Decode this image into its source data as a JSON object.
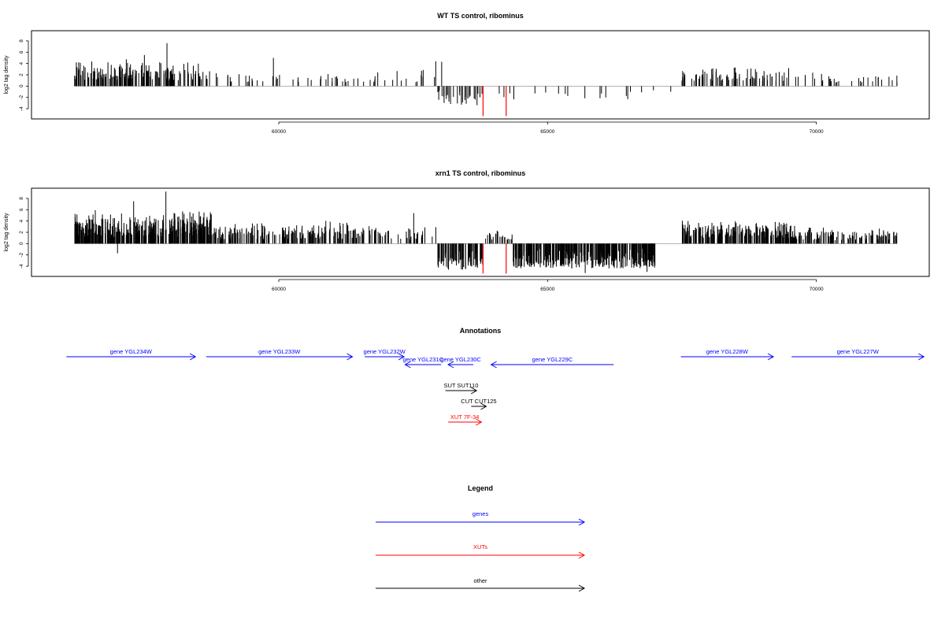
{
  "chart_data": [
    {
      "type": "bar",
      "title": "WT TS control, ribominus",
      "ylabel": "log2 tag density",
      "xlabel": "",
      "xlim": [
        55400,
        72100
      ],
      "ylim": [
        -5.8,
        9.8
      ],
      "xticks": [
        60000,
        65000,
        70000
      ],
      "yticks": [
        -4,
        -2,
        0,
        2,
        4,
        6,
        8
      ],
      "positive_color": "#000000",
      "negative_color": "#000000",
      "marker_color": "#ff0000",
      "markers": [
        {
          "x": 63800,
          "y": -5.3
        },
        {
          "x": 64230,
          "y": -5.3
        }
      ],
      "segments": [
        {
          "x0": 56200,
          "x1": 58600,
          "density": 0.7,
          "min": 1.0,
          "max": 4.8
        },
        {
          "x0": 58600,
          "x1": 60500,
          "density": 0.16,
          "min": 0.6,
          "max": 2.8
        },
        {
          "x0": 60500,
          "x1": 62000,
          "density": 0.16,
          "min": 0.6,
          "max": 2.8
        },
        {
          "x0": 62000,
          "x1": 62950,
          "density": 0.12,
          "min": 0.6,
          "max": 3.0
        },
        {
          "x0": 62950,
          "x1": 63800,
          "density": 0.35,
          "min": -3.4,
          "max": -0.6
        },
        {
          "x0": 63800,
          "x1": 67500,
          "density": 0.05,
          "min": -2.4,
          "max": -0.4
        },
        {
          "x0": 67500,
          "x1": 69500,
          "density": 0.4,
          "min": 0.8,
          "max": 3.6
        },
        {
          "x0": 69500,
          "x1": 71500,
          "density": 0.16,
          "min": 0.6,
          "max": 2.6
        }
      ],
      "peaks": [
        {
          "x": 57500,
          "y": 5.5
        },
        {
          "x": 57920,
          "y": 7.6
        },
        {
          "x": 59900,
          "y": 5.0
        },
        {
          "x": 62920,
          "y": 4.4
        },
        {
          "x": 63030,
          "y": 4.3
        }
      ]
    },
    {
      "type": "bar",
      "title": "xrn1 TS control, ribominus",
      "ylabel": "log2 tag density",
      "xlabel": "",
      "xlim": [
        55400,
        72100
      ],
      "ylim": [
        -5.8,
        9.8
      ],
      "xticks": [
        60000,
        65000,
        70000
      ],
      "yticks": [
        -4,
        -2,
        0,
        2,
        4,
        6,
        8
      ],
      "positive_color": "#000000",
      "negative_color": "#000000",
      "marker_color": "#ff0000",
      "markers": [
        {
          "x": 63800,
          "y": -5.3
        },
        {
          "x": 64230,
          "y": -5.3
        }
      ],
      "segments": [
        {
          "x0": 56200,
          "x1": 58800,
          "density": 1.4,
          "min": 1.2,
          "max": 6.0
        },
        {
          "x0": 58800,
          "x1": 60200,
          "density": 0.7,
          "min": 0.8,
          "max": 4.0
        },
        {
          "x0": 60200,
          "x1": 61600,
          "density": 0.7,
          "min": 0.8,
          "max": 4.3
        },
        {
          "x0": 61600,
          "x1": 62950,
          "density": 0.3,
          "min": 0.8,
          "max": 3.8
        },
        {
          "x0": 62950,
          "x1": 63800,
          "density": 0.9,
          "min": -4.6,
          "max": -0.8
        },
        {
          "x0": 63800,
          "x1": 64350,
          "density": 0.4,
          "min": 0.6,
          "max": 2.6
        },
        {
          "x0": 64350,
          "x1": 67000,
          "density": 1.2,
          "min": -4.4,
          "max": -0.8
        },
        {
          "x0": 67500,
          "x1": 69600,
          "density": 1.1,
          "min": 1.0,
          "max": 4.2
        },
        {
          "x0": 69600,
          "x1": 71500,
          "density": 0.6,
          "min": 0.6,
          "max": 3.2
        }
      ],
      "peaks": [
        {
          "x": 57900,
          "y": 9.2
        },
        {
          "x": 57300,
          "y": 7.5
        },
        {
          "x": 62510,
          "y": 5.4
        },
        {
          "x": 57000,
          "y": -1.7
        },
        {
          "x": 65700,
          "y": -5.2
        },
        {
          "x": 66850,
          "y": -5.0
        }
      ]
    }
  ],
  "annotations": {
    "title": "Annotations",
    "xlim": [
      55400,
      72100
    ],
    "features": [
      {
        "label": "gene YGL234W",
        "x0": 56050,
        "x1": 58450,
        "strand": "+",
        "row": 0,
        "color": "#0000ff"
      },
      {
        "label": "gene YGL233W",
        "x0": 58650,
        "x1": 61370,
        "strand": "+",
        "row": 0,
        "color": "#0000ff"
      },
      {
        "label": "gene YGL232W",
        "x0": 61600,
        "x1": 62330,
        "strand": "+",
        "row": 0,
        "color": "#0000ff"
      },
      {
        "label": "gene YGL231C",
        "x0": 62350,
        "x1": 63020,
        "strand": "-",
        "row": 1,
        "color": "#0000ff"
      },
      {
        "label": "gene YGL230C",
        "x0": 63150,
        "x1": 63620,
        "strand": "-",
        "row": 1,
        "color": "#0000ff"
      },
      {
        "label": "gene YGL229C",
        "x0": 63950,
        "x1": 66230,
        "strand": "-",
        "row": 1,
        "color": "#0000ff"
      },
      {
        "label": "gene YGL228W",
        "x0": 67480,
        "x1": 69200,
        "strand": "+",
        "row": 0,
        "color": "#0000ff"
      },
      {
        "label": "gene YGL227W",
        "x0": 69540,
        "x1": 72000,
        "strand": "+",
        "row": 0,
        "color": "#0000ff"
      },
      {
        "label": "SUT SUT110",
        "x0": 63100,
        "x1": 63680,
        "strand": "+",
        "row": 2,
        "color": "#000000"
      },
      {
        "label": "CUT CUT125",
        "x0": 63580,
        "x1": 63860,
        "strand": "+",
        "row": 3,
        "color": "#000000"
      },
      {
        "label": "XUT 7F-34",
        "x0": 63150,
        "x1": 63770,
        "strand": "+",
        "row": 4,
        "color": "#ff0000"
      }
    ]
  },
  "legend": {
    "title": "Legend",
    "items": [
      {
        "label": "genes",
        "color": "#0000ff"
      },
      {
        "label": "XUTs",
        "color": "#ff0000"
      },
      {
        "label": "other",
        "color": "#000000"
      }
    ]
  }
}
